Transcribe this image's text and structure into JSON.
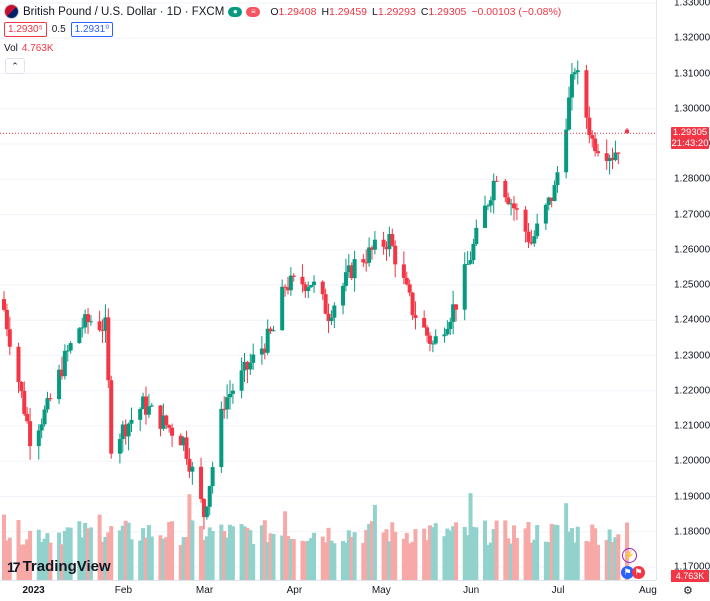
{
  "symbol": {
    "title": "British Pound / U.S. Dollar · 1D · FXCM",
    "open_label": "O",
    "open": "1.29408",
    "high_label": "H",
    "high": "1.29459",
    "low_label": "L",
    "low": "1.29293",
    "close_label": "C",
    "close": "1.29305",
    "change": "−0.00103 (−0.08%)"
  },
  "trade": {
    "sell_price": "1.2930⁵",
    "spread": "0.5",
    "buy_price": "1.2931⁰"
  },
  "volume": {
    "label": "Vol",
    "value": "4.763K",
    "axis_label": "4.763K"
  },
  "price_axis": {
    "ticks": [
      "1.33000",
      "1.32000",
      "1.31000",
      "1.30000",
      "1.29000",
      "1.28000",
      "1.27000",
      "1.26000",
      "1.25000",
      "1.24000",
      "1.23000",
      "1.22000",
      "1.21000",
      "1.20000",
      "1.19000",
      "1.18000",
      "1.17000"
    ],
    "current_price": "1.29305",
    "countdown": "21:43:20"
  },
  "time_axis": {
    "ticks": [
      {
        "label": "2023",
        "bold": true
      },
      {
        "label": "Feb",
        "bold": false
      },
      {
        "label": "Mar",
        "bold": false
      },
      {
        "label": "Apr",
        "bold": false
      },
      {
        "label": "May",
        "bold": false
      },
      {
        "label": "Jun",
        "bold": false
      },
      {
        "label": "Jul",
        "bold": false
      },
      {
        "label": "Aug",
        "bold": false
      }
    ]
  },
  "branding": {
    "logo_text": "TradingView",
    "logo_mark": "17"
  },
  "colors": {
    "up": "#089981",
    "down": "#f23645",
    "vol_up": "#92d2cc",
    "vol_down": "#f7a9a7",
    "accent": "#2962ff"
  },
  "icons": {
    "collapse": "chevron-up-icon",
    "settings": "gear-icon",
    "flash": "lightning-icon",
    "events": "flag-icon"
  },
  "chart_data": {
    "type": "candlestick",
    "timeframe": "1D",
    "ylim": [
      1.17,
      1.33
    ],
    "x_range": [
      "2022-12-28",
      "2023-07-31"
    ],
    "anchors": [
      {
        "date": "2022-12-28",
        "close": 1.243
      },
      {
        "date": "2023-01-06",
        "close": 1.207
      },
      {
        "date": "2023-01-12",
        "close": 1.215
      },
      {
        "date": "2023-01-18",
        "close": 1.229
      },
      {
        "date": "2023-01-23",
        "close": 1.238
      },
      {
        "date": "2023-01-27",
        "close": 1.24
      },
      {
        "date": "2023-02-01",
        "close": 1.238
      },
      {
        "date": "2023-02-03",
        "close": 1.205
      },
      {
        "date": "2023-02-14",
        "close": 1.216
      },
      {
        "date": "2023-02-28",
        "close": 1.206
      },
      {
        "date": "2023-03-07",
        "close": 1.185
      },
      {
        "date": "2023-03-14",
        "close": 1.217
      },
      {
        "date": "2023-03-31",
        "close": 1.237
      },
      {
        "date": "2023-04-04",
        "close": 1.25
      },
      {
        "date": "2023-04-13",
        "close": 1.251
      },
      {
        "date": "2023-04-19",
        "close": 1.242
      },
      {
        "date": "2023-04-28",
        "close": 1.256
      },
      {
        "date": "2023-05-10",
        "close": 1.263
      },
      {
        "date": "2023-05-18",
        "close": 1.243
      },
      {
        "date": "2023-05-25",
        "close": 1.233
      },
      {
        "date": "2023-06-02",
        "close": 1.245
      },
      {
        "date": "2023-06-16",
        "close": 1.282
      },
      {
        "date": "2023-06-28",
        "close": 1.262
      },
      {
        "date": "2023-07-06",
        "close": 1.277
      },
      {
        "date": "2023-07-13",
        "close": 1.312
      },
      {
        "date": "2023-07-19",
        "close": 1.291
      },
      {
        "date": "2023-07-26",
        "close": 1.287
      },
      {
        "date": "2023-07-31",
        "close": 1.2931
      }
    ]
  }
}
